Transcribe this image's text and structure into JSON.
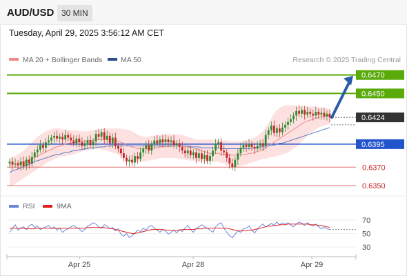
{
  "header": {
    "symbol": "AUD/USD",
    "interval": "30 MIN"
  },
  "datetime": "Tuesday, April 29, 2025 3:56:12 AM CET",
  "legend": {
    "ma20": "MA 20 + Bollinger Bands",
    "ma50": "MA 50",
    "credit": "Research © 2025 Trading Central",
    "rsi": "RSI",
    "rsi_ma": "9MA"
  },
  "colors": {
    "bull": "#2e8b2e",
    "bear": "#c62828",
    "ma20": "#f08a8a",
    "band_fill": "#fde0e0",
    "ma50": "#5a7bc4",
    "green_level": "#5aaa0a",
    "blue_level": "#2255cc",
    "red_level": "#e07070",
    "arrow": "#2a5ca8",
    "current_price": "#333333",
    "rsi_line": "#6a86d6",
    "rsi_ma_line": "#e02020"
  },
  "chart_data": [
    {
      "type": "candlestick",
      "y_range": [
        0.6341,
        0.6478
      ],
      "levels": [
        {
          "label": "0.6470",
          "value": 0.647,
          "kind": "resistance"
        },
        {
          "label": "0.6450",
          "value": 0.645,
          "kind": "resistance"
        },
        {
          "label": "0.6424",
          "value": 0.6424,
          "kind": "current"
        },
        {
          "label": "0.6395",
          "value": 0.6395,
          "kind": "pivot"
        },
        {
          "label": "0.6370",
          "value": 0.637,
          "kind": "support"
        },
        {
          "label": "0.6350",
          "value": 0.635,
          "kind": "support"
        }
      ],
      "x_labels": [
        "Apr 25",
        "Apr 28",
        "Apr 29"
      ],
      "closes": [
        0.6376,
        0.6373,
        0.6374,
        0.6372,
        0.6376,
        0.6371,
        0.6378,
        0.6374,
        0.6381,
        0.6386,
        0.6389,
        0.6394,
        0.6391,
        0.6397,
        0.6399,
        0.6402,
        0.6404,
        0.6401,
        0.6403,
        0.64,
        0.6405,
        0.6402,
        0.6399,
        0.6396,
        0.6401,
        0.6397,
        0.6393,
        0.6396,
        0.6399,
        0.6394,
        0.6398,
        0.6406,
        0.6403,
        0.6408,
        0.64,
        0.6404,
        0.6396,
        0.6402,
        0.6393,
        0.639,
        0.6385,
        0.638,
        0.6376,
        0.6378,
        0.6375,
        0.6382,
        0.6379,
        0.6386,
        0.639,
        0.6394,
        0.6388,
        0.6395,
        0.6399,
        0.6396,
        0.64,
        0.6397,
        0.64,
        0.6397,
        0.6399,
        0.6394,
        0.6396,
        0.6392,
        0.6388,
        0.6385,
        0.6388,
        0.6383,
        0.6386,
        0.638,
        0.6385,
        0.6379,
        0.6383,
        0.6377,
        0.6382,
        0.6388,
        0.6395,
        0.6397,
        0.6388,
        0.6386,
        0.638,
        0.6374,
        0.637,
        0.6378,
        0.6385,
        0.6391,
        0.6394,
        0.6392,
        0.6395,
        0.6392,
        0.639,
        0.6393,
        0.6396,
        0.6393,
        0.6405,
        0.641,
        0.6415,
        0.6407,
        0.6412,
        0.6408,
        0.6413,
        0.6416,
        0.6419,
        0.6422,
        0.6426,
        0.6431,
        0.6428,
        0.6432,
        0.6427,
        0.643,
        0.6428,
        0.6426,
        0.643,
        0.6427,
        0.6429,
        0.6425,
        0.6428,
        0.6424
      ],
      "ma20": [
        0.6372,
        0.6373,
        0.6373,
        0.6374,
        0.6375,
        0.6376,
        0.6377,
        0.6378,
        0.6379,
        0.6381,
        0.6382,
        0.6384,
        0.6385,
        0.6387,
        0.6388,
        0.6389,
        0.6391,
        0.6392,
        0.6393,
        0.6394,
        0.6395,
        0.6396,
        0.6396,
        0.6397,
        0.6397,
        0.6398,
        0.6398,
        0.6398,
        0.6399,
        0.6399,
        0.6399,
        0.64,
        0.64,
        0.64,
        0.64,
        0.64,
        0.64,
        0.64,
        0.6399,
        0.6398,
        0.6397,
        0.6396,
        0.6394,
        0.6393,
        0.6392,
        0.6391,
        0.639,
        0.639,
        0.639,
        0.639,
        0.639,
        0.639,
        0.6391,
        0.6391,
        0.6392,
        0.6392,
        0.6392,
        0.6392,
        0.6393,
        0.6393,
        0.6393,
        0.6393,
        0.6393,
        0.6392,
        0.6392,
        0.6391,
        0.6391,
        0.639,
        0.6389,
        0.6388,
        0.6387,
        0.6386,
        0.6385,
        0.6385,
        0.6385,
        0.6385,
        0.6384,
        0.6384,
        0.6383,
        0.6383,
        0.6383,
        0.6383,
        0.6383,
        0.6384,
        0.6384,
        0.6384,
        0.6385,
        0.6385,
        0.6386,
        0.6387,
        0.6388,
        0.6389,
        0.6391,
        0.6393,
        0.6395,
        0.6397,
        0.6399,
        0.6401,
        0.6403,
        0.6405,
        0.6407,
        0.6409,
        0.6411,
        0.6413,
        0.6415,
        0.6417,
        0.6419,
        0.642,
        0.6421,
        0.6422,
        0.6423,
        0.6424,
        0.6425,
        0.6425,
        0.6426,
        0.6426
      ],
      "bb_upper": [
        0.638,
        0.6381,
        0.6382,
        0.6384,
        0.6386,
        0.6388,
        0.6391,
        0.6394,
        0.6397,
        0.64,
        0.6403,
        0.6405,
        0.6407,
        0.6409,
        0.641,
        0.6411,
        0.6412,
        0.6412,
        0.6412,
        0.6411,
        0.6411,
        0.641,
        0.641,
        0.641,
        0.641,
        0.6409,
        0.6409,
        0.6409,
        0.6409,
        0.641,
        0.641,
        0.641,
        0.6411,
        0.6411,
        0.6412,
        0.6412,
        0.6412,
        0.6412,
        0.6412,
        0.6412,
        0.6412,
        0.6411,
        0.6411,
        0.641,
        0.6409,
        0.6407,
        0.6405,
        0.6404,
        0.6403,
        0.6403,
        0.6403,
        0.6404,
        0.6404,
        0.6405,
        0.6405,
        0.6406,
        0.6406,
        0.6406,
        0.6406,
        0.6406,
        0.6406,
        0.6405,
        0.6405,
        0.6404,
        0.6403,
        0.6402,
        0.6401,
        0.64,
        0.64,
        0.64,
        0.64,
        0.64,
        0.64,
        0.64,
        0.64,
        0.64,
        0.6399,
        0.6399,
        0.6399,
        0.6398,
        0.6398,
        0.6398,
        0.6398,
        0.6398,
        0.6399,
        0.6399,
        0.64,
        0.6401,
        0.6402,
        0.6404,
        0.6406,
        0.6409,
        0.6413,
        0.6418,
        0.6423,
        0.6428,
        0.6432,
        0.6434,
        0.6436,
        0.6437,
        0.6437,
        0.6437,
        0.6437,
        0.6437,
        0.6437,
        0.6437,
        0.6436,
        0.6436,
        0.6436,
        0.6436,
        0.6436,
        0.6435,
        0.6435,
        0.6434,
        0.6434,
        0.6433
      ],
      "bb_lower": [
        0.6348,
        0.635,
        0.6352,
        0.6354,
        0.6356,
        0.6358,
        0.636,
        0.6362,
        0.6364,
        0.6366,
        0.6368,
        0.637,
        0.6372,
        0.6374,
        0.6376,
        0.6377,
        0.6379,
        0.638,
        0.6381,
        0.6382,
        0.6382,
        0.6383,
        0.6383,
        0.6384,
        0.6385,
        0.6386,
        0.6387,
        0.6388,
        0.6388,
        0.6389,
        0.6389,
        0.639,
        0.639,
        0.6389,
        0.6389,
        0.6388,
        0.6387,
        0.6386,
        0.6385,
        0.6384,
        0.6382,
        0.638,
        0.6378,
        0.6377,
        0.6376,
        0.6376,
        0.6376,
        0.6376,
        0.6376,
        0.6377,
        0.6377,
        0.6378,
        0.6378,
        0.6379,
        0.638,
        0.638,
        0.638,
        0.638,
        0.638,
        0.638,
        0.638,
        0.6379,
        0.6379,
        0.6378,
        0.6378,
        0.6377,
        0.6377,
        0.6377,
        0.6376,
        0.6376,
        0.6376,
        0.6376,
        0.6376,
        0.6376,
        0.6376,
        0.6376,
        0.6375,
        0.6374,
        0.6372,
        0.6371,
        0.637,
        0.637,
        0.637,
        0.6371,
        0.6372,
        0.6373,
        0.6374,
        0.6375,
        0.6376,
        0.6377,
        0.6378,
        0.6379,
        0.6379,
        0.638,
        0.6381,
        0.6381,
        0.6382,
        0.6383,
        0.6384,
        0.6385,
        0.6386,
        0.6388,
        0.639,
        0.6392,
        0.6395,
        0.6398,
        0.6401,
        0.6404,
        0.6407,
        0.6409,
        0.6411,
        0.6413,
        0.6414,
        0.6415,
        0.6416,
        0.6416
      ],
      "ma50": [
        0.6364,
        0.6366,
        0.6367,
        0.6368,
        0.6369,
        0.6371,
        0.6372,
        0.6373,
        0.6374,
        0.6376,
        0.6377,
        0.6378,
        0.6379,
        0.638,
        0.6381,
        0.6382,
        0.6383,
        0.6384,
        0.6384,
        0.6385,
        0.6386,
        0.6386,
        0.6387,
        0.6388,
        0.6388,
        0.6389,
        0.6389,
        0.639,
        0.639,
        0.6391,
        0.6391,
        0.6391,
        0.6392,
        0.6392,
        0.6392,
        0.6393,
        0.6393,
        0.6393,
        0.6393,
        0.6393,
        0.6393,
        0.6393,
        0.6393,
        0.6393,
        0.6393,
        0.6393,
        0.6393,
        0.6393,
        0.6393,
        0.6393,
        0.6393,
        0.6393,
        0.6393,
        0.6393,
        0.6393,
        0.6393,
        0.6393,
        0.6393,
        0.6393,
        0.6393,
        0.6393,
        0.6393,
        0.6393,
        0.6393,
        0.6393,
        0.6392,
        0.6392,
        0.6392,
        0.6392,
        0.6391,
        0.6391,
        0.6391,
        0.6391,
        0.6391,
        0.6391,
        0.6391,
        0.639,
        0.639,
        0.639,
        0.639,
        0.639,
        0.639,
        0.639,
        0.639,
        0.639,
        0.639,
        0.639,
        0.6391,
        0.6391,
        0.6391,
        0.6392,
        0.6392,
        0.6393,
        0.6393,
        0.6394,
        0.6394,
        0.6395,
        0.6396,
        0.6396,
        0.6397,
        0.6398,
        0.6399,
        0.64,
        0.6401,
        0.6402,
        0.6403,
        0.6404,
        0.6405,
        0.6406,
        0.6407,
        0.6408,
        0.6409,
        0.641,
        0.6411,
        0.6412,
        0.6413
      ],
      "projection": {
        "from": 0.6424,
        "to": 0.647
      }
    },
    {
      "type": "line",
      "name": "RSI",
      "y_ticks": [
        70,
        50,
        30
      ],
      "y_range": [
        22,
        76
      ],
      "rsi": [
        52,
        58,
        63,
        55,
        58,
        60,
        56,
        61,
        64,
        59,
        61,
        56,
        58,
        60,
        62,
        57,
        60,
        55,
        58,
        52,
        55,
        57,
        60,
        62,
        59,
        57,
        53,
        56,
        61,
        63,
        66,
        64,
        60,
        58,
        63,
        61,
        57,
        59,
        54,
        57,
        49,
        46,
        50,
        44,
        47,
        51,
        55,
        53,
        58,
        55,
        60,
        62,
        58,
        55,
        52,
        56,
        54,
        49,
        52,
        55,
        51,
        56,
        53,
        58,
        62,
        56,
        52,
        57,
        60,
        63,
        60,
        58,
        55,
        52,
        60,
        64,
        66,
        58,
        52,
        47,
        44,
        49,
        54,
        52,
        57,
        58,
        61,
        55,
        51,
        56,
        61,
        64,
        60,
        62,
        65,
        62,
        67,
        63,
        66,
        64,
        66,
        63,
        60,
        64,
        67,
        65,
        62,
        66,
        63,
        61,
        64,
        60,
        57,
        60,
        57,
        56
      ],
      "rsi_ma": [
        58,
        58,
        58,
        58,
        58,
        58,
        57,
        57,
        57,
        57,
        58,
        58,
        58,
        58,
        58,
        58,
        58,
        58,
        58,
        58,
        58,
        58,
        58,
        58,
        58,
        58,
        58,
        58,
        59,
        59,
        59,
        59,
        59,
        59,
        59,
        58,
        58,
        57,
        56,
        55,
        54,
        53,
        52,
        51,
        50,
        50,
        51,
        52,
        53,
        54,
        55,
        56,
        56,
        56,
        56,
        56,
        55,
        55,
        55,
        55,
        55,
        55,
        56,
        56,
        56,
        56,
        56,
        57,
        57,
        57,
        58,
        58,
        58,
        58,
        58,
        58,
        58,
        58,
        58,
        57,
        56,
        55,
        54,
        54,
        54,
        54,
        55,
        55,
        56,
        57,
        58,
        59,
        60,
        61,
        61,
        62,
        62,
        63,
        63,
        63,
        64,
        64,
        64,
        64,
        64,
        64,
        64,
        64,
        63,
        63,
        63,
        62,
        62,
        61,
        60,
        59
      ],
      "x_labels": [
        "Apr 25",
        "Apr 28",
        "Apr 29"
      ]
    }
  ]
}
